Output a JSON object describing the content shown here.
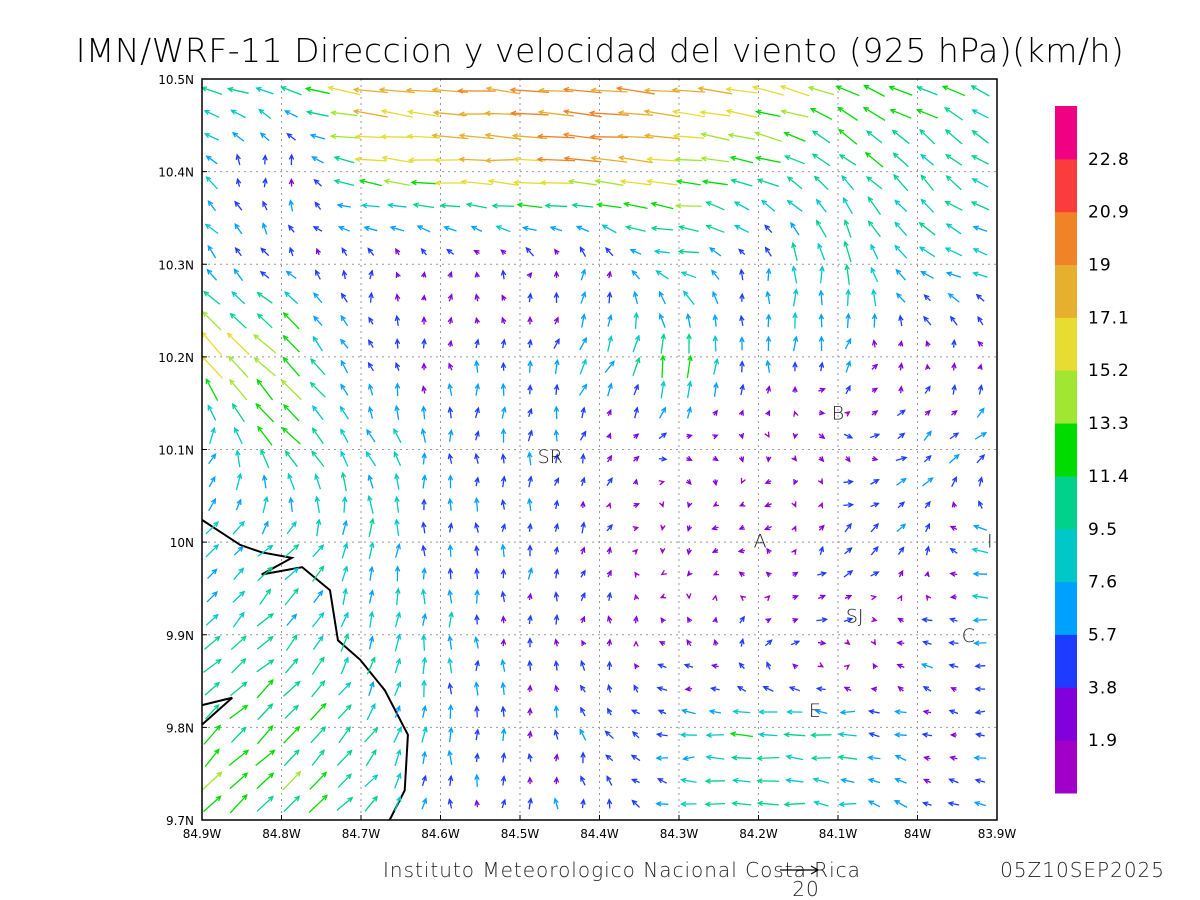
{
  "title": "IMN/WRF-11 Direccion y velocidad del viento (925 hPa)(km/h)",
  "credit": "Instituto Meteorologico Nacional Costa Rica",
  "timestamp": "05Z10SEP2025",
  "reference_vector": {
    "label": "20",
    "speed": 20
  },
  "axes": {
    "lon_labels": [
      "84.9W",
      "84.8W",
      "84.7W",
      "84.6W",
      "84.5W",
      "84.4W",
      "84.3W",
      "84.2W",
      "84.1W",
      "84W",
      "83.9W"
    ],
    "lon_values": [
      -84.9,
      -84.8,
      -84.7,
      -84.6,
      -84.5,
      -84.4,
      -84.3,
      -84.2,
      -84.1,
      -84.0,
      -83.9
    ],
    "lat_labels": [
      "10.5N",
      "10.4N",
      "10.3N",
      "10.2N",
      "10.1N",
      "10N",
      "9.9N",
      "9.8N",
      "9.7N"
    ],
    "lat_values": [
      10.5,
      10.4,
      10.3,
      10.2,
      10.1,
      10.0,
      9.9,
      9.8,
      9.7
    ]
  },
  "colorbar": {
    "labels": [
      "1.9",
      "3.8",
      "5.7",
      "7.6",
      "9.5",
      "11.4",
      "13.3",
      "15.2",
      "17.1",
      "19",
      "20.9",
      "22.8"
    ],
    "thresholds": [
      1.9,
      3.8,
      5.7,
      7.6,
      9.5,
      11.4,
      13.3,
      15.2,
      17.1,
      19,
      20.9,
      22.8
    ],
    "colors": [
      "#a000c8",
      "#8200dc",
      "#1e3cff",
      "#00a0ff",
      "#00c8c8",
      "#00d28c",
      "#00dc00",
      "#a0e632",
      "#e6dc32",
      "#e6af2d",
      "#f08228",
      "#fa3c3c",
      "#f00082"
    ]
  },
  "cities": [
    {
      "label": "SR",
      "lon": -84.462,
      "lat": 10.093
    },
    {
      "label": "B",
      "lon": -84.1,
      "lat": 10.14
    },
    {
      "label": "A",
      "lon": -84.198,
      "lat": 10.002
    },
    {
      "label": "I",
      "lon": -83.909,
      "lat": 10.002
    },
    {
      "label": "SJ",
      "lon": -84.079,
      "lat": 9.921
    },
    {
      "label": "C",
      "lon": -83.936,
      "lat": 9.9
    },
    {
      "label": "E",
      "lon": -84.129,
      "lat": 9.819
    }
  ],
  "chart_data": {
    "type": "vector-field",
    "title": "IMN/WRF-11 Direccion y velocidad del viento (925 hPa)(km/h)",
    "units": "km/h",
    "lon_range": [
      -84.9,
      -83.9
    ],
    "lat_range": [
      9.7,
      10.5
    ],
    "grid_lons": [
      -84.9,
      -84.8,
      -84.7,
      -84.6,
      -84.5,
      -84.4,
      -84.3,
      -84.2,
      -84.1,
      -84.0,
      -83.9
    ],
    "grid_lats": [
      10.5,
      10.4,
      10.3,
      10.2,
      10.1,
      10.0,
      9.9,
      9.8,
      9.7
    ],
    "direction_to_deg": [
      [
        285,
        285,
        280,
        275,
        275,
        275,
        275,
        280,
        290,
        295,
        295
      ],
      [
        315,
        30,
        275,
        272,
        272,
        275,
        275,
        285,
        315,
        315,
        305
      ],
      [
        315,
        315,
        0,
        0,
        0,
        10,
        280,
        0,
        355,
        310,
        280
      ],
      [
        315,
        315,
        340,
        0,
        0,
        30,
        5,
        0,
        20,
        0,
        0
      ],
      [
        40,
        320,
        330,
        0,
        0,
        30,
        90,
        200,
        135,
        50,
        50
      ],
      [
        45,
        45,
        10,
        0,
        0,
        30,
        200,
        270,
        45,
        45,
        270
      ],
      [
        45,
        45,
        10,
        0,
        0,
        0,
        315,
        45,
        90,
        270,
        270
      ],
      [
        45,
        45,
        40,
        0,
        0,
        330,
        270,
        275,
        275,
        300,
        270
      ],
      [
        45,
        45,
        45,
        0,
        0,
        0,
        275,
        275,
        275,
        300,
        280
      ]
    ],
    "speed": [
      [
        12,
        10,
        19,
        19,
        19,
        20,
        18,
        16,
        14,
        12,
        11
      ],
      [
        8,
        6,
        14,
        16,
        18,
        18,
        15,
        12,
        10,
        10,
        10
      ],
      [
        8,
        5,
        3,
        3,
        3,
        4,
        10,
        5,
        12,
        8,
        8
      ],
      [
        17,
        15,
        5,
        4,
        5,
        8,
        13,
        6,
        6,
        3,
        3
      ],
      [
        8,
        13,
        9,
        6,
        6,
        3,
        3,
        3,
        4,
        6,
        7
      ],
      [
        7,
        9,
        9,
        6,
        5,
        5,
        3,
        4,
        5,
        7,
        12
      ],
      [
        10,
        10,
        8,
        7,
        4,
        3,
        3,
        5,
        5,
        5,
        5
      ],
      [
        12,
        12,
        10,
        7,
        5,
        5,
        6,
        11,
        9,
        4,
        3
      ],
      [
        12,
        12,
        11,
        5,
        4,
        4,
        8,
        10,
        8,
        6,
        8
      ]
    ]
  },
  "coastline": [
    [
      [
        -84.9,
        10.024
      ],
      [
        -84.852,
        9.997
      ],
      [
        -84.825,
        9.989
      ],
      [
        -84.787,
        9.983
      ],
      [
        -84.825,
        9.965
      ],
      [
        -84.774,
        9.973
      ],
      [
        -84.739,
        9.948
      ],
      [
        -84.729,
        9.894
      ],
      [
        -84.701,
        9.873
      ],
      [
        -84.67,
        9.84
      ],
      [
        -84.641,
        9.792
      ],
      [
        -84.645,
        9.732
      ],
      [
        -84.664,
        9.7
      ]
    ],
    [
      [
        -84.9,
        9.824
      ],
      [
        -84.862,
        9.832
      ],
      [
        -84.9,
        9.803
      ]
    ]
  ]
}
